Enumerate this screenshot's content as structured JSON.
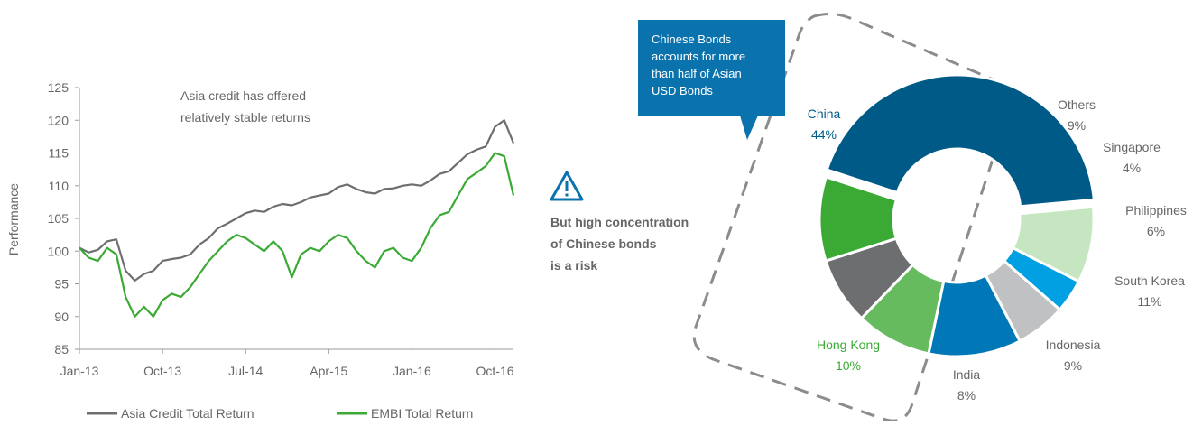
{
  "colors": {
    "asia_line": "#6d6e70",
    "embi_line": "#3aaa35",
    "china": "#005a87",
    "hong_kong": "#3aaa35",
    "india": "#6d6e70",
    "indonesia": "#66bb5e",
    "south_korea": "#0077b6",
    "philippines": "#c0c1c3",
    "singapore": "#00a0e3",
    "others": "#c5e6c0",
    "callout_bg": "#0a72ad",
    "warning_icon": "#0a72ad",
    "dashed_outline": "#8c8c8c",
    "label_text": "#666666"
  },
  "icons": {
    "warning": "warning-triangle-icon"
  },
  "chart_data": [
    {
      "type": "line",
      "title": "",
      "xlabel": "",
      "ylabel": "Performance",
      "ylim": [
        85,
        125
      ],
      "yticks": [
        85,
        90,
        95,
        100,
        105,
        110,
        115,
        120,
        125
      ],
      "xlim": [
        "2013-01",
        "2016-12"
      ],
      "xticks": [
        "2013-01",
        "2013-10",
        "2014-07",
        "2015-04",
        "2016-01",
        "2016-10"
      ],
      "xtick_labels": [
        "Jan-13",
        "Oct-13",
        "Jul-14",
        "Apr-15",
        "Jan-16",
        "Oct-16"
      ],
      "grid": false,
      "legend": "bottom",
      "annotation": "Asia credit has offered relatively stable returns",
      "annotation_lines": [
        "Asia credit has offered",
        "relatively stable returns"
      ],
      "series": [
        {
          "name": "Asia Credit Total Return",
          "color": "#6d6e70",
          "x": [
            "2013-01",
            "2013-02",
            "2013-03",
            "2013-04",
            "2013-05",
            "2013-06",
            "2013-07",
            "2013-08",
            "2013-09",
            "2013-10",
            "2013-11",
            "2013-12",
            "2014-01",
            "2014-02",
            "2014-03",
            "2014-04",
            "2014-05",
            "2014-06",
            "2014-07",
            "2014-08",
            "2014-09",
            "2014-10",
            "2014-11",
            "2014-12",
            "2015-01",
            "2015-02",
            "2015-03",
            "2015-04",
            "2015-05",
            "2015-06",
            "2015-07",
            "2015-08",
            "2015-09",
            "2015-10",
            "2015-11",
            "2015-12",
            "2016-01",
            "2016-02",
            "2016-03",
            "2016-04",
            "2016-05",
            "2016-06",
            "2016-07",
            "2016-08",
            "2016-09",
            "2016-10",
            "2016-11",
            "2016-12"
          ],
          "y": [
            100.5,
            99.8,
            100.2,
            101.5,
            101.8,
            97.0,
            95.5,
            96.5,
            97.0,
            98.5,
            98.8,
            99.0,
            99.5,
            101.0,
            102.0,
            103.5,
            104.2,
            105.0,
            105.8,
            106.2,
            106.0,
            106.8,
            107.2,
            107.0,
            107.5,
            108.2,
            108.5,
            108.8,
            109.8,
            110.2,
            109.5,
            109.0,
            108.8,
            109.5,
            109.6,
            110.0,
            110.2,
            110.0,
            110.8,
            111.8,
            112.2,
            113.5,
            114.8,
            115.5,
            116.0,
            119.0,
            120.0,
            116.5
          ]
        },
        {
          "name": "EMBI Total Return",
          "color": "#3aaa35",
          "x": [
            "2013-01",
            "2013-02",
            "2013-03",
            "2013-04",
            "2013-05",
            "2013-06",
            "2013-07",
            "2013-08",
            "2013-09",
            "2013-10",
            "2013-11",
            "2013-12",
            "2014-01",
            "2014-02",
            "2014-03",
            "2014-04",
            "2014-05",
            "2014-06",
            "2014-07",
            "2014-08",
            "2014-09",
            "2014-10",
            "2014-11",
            "2014-12",
            "2015-01",
            "2015-02",
            "2015-03",
            "2015-04",
            "2015-05",
            "2015-06",
            "2015-07",
            "2015-08",
            "2015-09",
            "2015-10",
            "2015-11",
            "2015-12",
            "2016-01",
            "2016-02",
            "2016-03",
            "2016-04",
            "2016-05",
            "2016-06",
            "2016-07",
            "2016-08",
            "2016-09",
            "2016-10",
            "2016-11",
            "2016-12"
          ],
          "y": [
            100.5,
            99.0,
            98.5,
            100.5,
            99.5,
            93.0,
            90.0,
            91.5,
            90.0,
            92.5,
            93.5,
            93.0,
            94.5,
            96.5,
            98.5,
            100.0,
            101.5,
            102.5,
            102.0,
            101.0,
            100.0,
            101.5,
            100.0,
            96.0,
            99.5,
            100.5,
            100.0,
            101.5,
            102.5,
            102.0,
            100.0,
            98.5,
            97.5,
            100.0,
            100.5,
            99.0,
            98.5,
            100.5,
            103.5,
            105.5,
            106.0,
            108.5,
            111.0,
            112.0,
            113.0,
            115.0,
            114.5,
            108.5
          ]
        }
      ]
    },
    {
      "type": "pie",
      "subtype": "donut",
      "title": "",
      "slices": [
        {
          "label": "China",
          "value": 44,
          "display": "44%",
          "color": "#005a87",
          "text_color": "#005a87"
        },
        {
          "label": "Others",
          "value": 9,
          "display": "9%",
          "color": "#c5e6c0",
          "text_color": "#666666"
        },
        {
          "label": "Singapore",
          "value": 4,
          "display": "4%",
          "color": "#00a0e3",
          "text_color": "#666666"
        },
        {
          "label": "Philippines",
          "value": 6,
          "display": "6%",
          "color": "#c0c1c3",
          "text_color": "#666666"
        },
        {
          "label": "South Korea",
          "value": 11,
          "display": "11%",
          "color": "#0077b6",
          "text_color": "#666666"
        },
        {
          "label": "Indonesia",
          "value": 9,
          "display": "9%",
          "color": "#66bb5e",
          "text_color": "#666666"
        },
        {
          "label": "India",
          "value": 8,
          "display": "8%",
          "color": "#6d6e70",
          "text_color": "#666666"
        },
        {
          "label": "Hong Kong",
          "value": 10,
          "display": "10%",
          "color": "#3aaa35",
          "text_color": "#3aaa35"
        }
      ],
      "callout": "Chinese Bonds accounts for more than half of Asian USD Bonds",
      "callout_lines": [
        "Chinese Bonds",
        "accounts for more",
        "than half of Asian",
        "USD Bonds"
      ]
    }
  ],
  "warning": {
    "text": "But high concentration of Chinese bonds is a risk",
    "lines": [
      "But high concentration",
      "of Chinese bonds",
      "is a risk"
    ]
  }
}
